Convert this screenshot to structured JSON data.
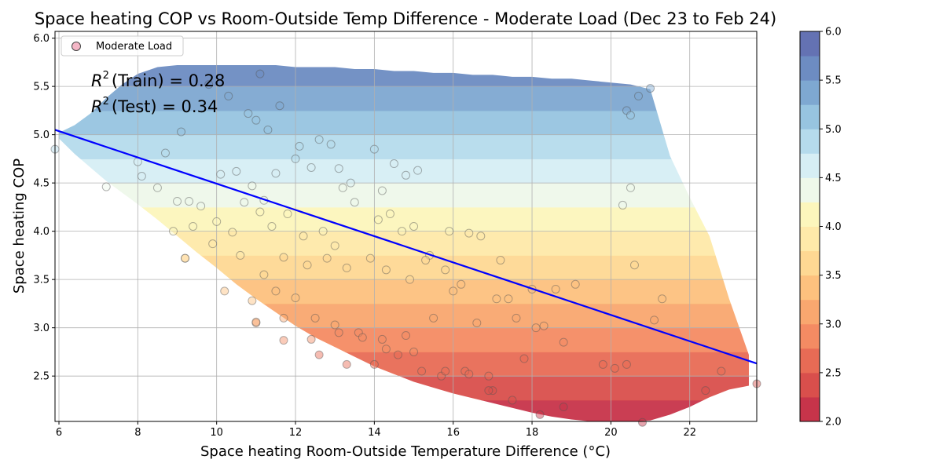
{
  "chart_data": {
    "type": "scatter",
    "title": "Space heating COP vs Room-Outside Temp Difference - Moderate Load (Dec 23 to Feb 24)",
    "xlabel": "Space heating Room-Outside Temperature Difference (°C)",
    "ylabel": "Space heating COP",
    "xlim": [
      5.9,
      23.7
    ],
    "ylim": [
      2.03,
      6.07
    ],
    "x_ticks": [
      6,
      8,
      10,
      12,
      14,
      16,
      18,
      20,
      22
    ],
    "y_ticks": [
      2.5,
      3.0,
      3.5,
      4.0,
      4.5,
      5.0,
      5.5,
      6.0
    ],
    "grid": true,
    "legend": {
      "placement": "top-left",
      "entries": [
        "Moderate Load"
      ]
    },
    "annotations": {
      "r2_train": "$R^2$ (Train) = 0.28",
      "r2_test": "$R^2$ (Test) = 0.34",
      "r2_train_label": "(Train) = 0.28",
      "r2_test_label": "(Test) = 0.34",
      "r2_symbol": "R",
      "r2_superscript": "2"
    },
    "regression_line": {
      "x": [
        5.9,
        23.7
      ],
      "y": [
        5.05,
        2.63
      ],
      "color": "#0000ff"
    },
    "colorbar": {
      "min": 2.0,
      "max": 6.0,
      "ticks": [
        "2.0",
        "2.5",
        "3.0",
        "3.5",
        "4.0",
        "4.5",
        "5.0",
        "5.5",
        "6.0"
      ],
      "colormap": "RdYlBu",
      "colors": [
        "#c7344a",
        "#d94f4c",
        "#e86b55",
        "#f48b63",
        "#f9a76f",
        "#fdc17e",
        "#fed893",
        "#fee9a9",
        "#fcf6bc",
        "#eef8ea",
        "#d6eef4",
        "#b5dbec",
        "#97c4e0",
        "#7ea8d1",
        "#6d8cc2",
        "#6472b3"
      ]
    },
    "contour_region": {
      "x": [
        6.0,
        6.4,
        6.8,
        7.2,
        7.6,
        8.0,
        8.5,
        9.0,
        9.5,
        10.0,
        10.5,
        11.0,
        11.5,
        12.0,
        12.5,
        13.0,
        13.5,
        14.0,
        14.5,
        15.0,
        15.5,
        16.0,
        16.5,
        17.0,
        17.5,
        18.0,
        18.5,
        19.0,
        19.5,
        20.0,
        20.5,
        21.0,
        21.5,
        22.0,
        22.5,
        23.0,
        23.5
      ],
      "y_top": [
        5.02,
        5.1,
        5.22,
        5.38,
        5.52,
        5.63,
        5.7,
        5.72,
        5.72,
        5.72,
        5.72,
        5.72,
        5.72,
        5.7,
        5.7,
        5.7,
        5.68,
        5.68,
        5.66,
        5.66,
        5.64,
        5.64,
        5.62,
        5.62,
        5.6,
        5.6,
        5.58,
        5.58,
        5.56,
        5.54,
        5.52,
        5.47,
        4.78,
        4.35,
        3.95,
        3.3,
        2.72
      ],
      "y_bottom": [
        4.96,
        4.8,
        4.66,
        4.52,
        4.4,
        4.28,
        4.12,
        3.95,
        3.78,
        3.62,
        3.45,
        3.3,
        3.16,
        3.02,
        2.9,
        2.8,
        2.7,
        2.6,
        2.52,
        2.44,
        2.38,
        2.32,
        2.27,
        2.22,
        2.17,
        2.12,
        2.08,
        2.05,
        2.03,
        2.03,
        2.03,
        2.04,
        2.1,
        2.18,
        2.28,
        2.36,
        2.4
      ]
    },
    "series": [
      {
        "name": "Moderate Load",
        "x": [
          5.9,
          7.2,
          8.1,
          8.5,
          9.0,
          9.3,
          9.6,
          10.1,
          10.5,
          10.9,
          11.2,
          11.5,
          12.0,
          12.4,
          12.9,
          13.2,
          8.0,
          8.7,
          9.1,
          9.8,
          10.3,
          10.8,
          11.0,
          11.3,
          11.6,
          12.1,
          12.6,
          13.1,
          13.4,
          14.0,
          14.2,
          14.5,
          14.8,
          15.1,
          8.9,
          9.4,
          10.0,
          10.4,
          10.7,
          11.1,
          11.4,
          11.8,
          12.2,
          12.7,
          13.0,
          13.5,
          14.1,
          14.4,
          14.7,
          15.0,
          15.4,
          15.9,
          16.4,
          9.2,
          9.9,
          10.6,
          11.2,
          11.7,
          12.3,
          12.8,
          13.3,
          13.9,
          14.3,
          14.9,
          15.3,
          15.8,
          16.2,
          16.7,
          17.2,
          10.2,
          10.9,
          11.5,
          12.0,
          12.5,
          13.0,
          13.6,
          14.2,
          14.8,
          15.5,
          16.0,
          16.6,
          17.1,
          17.6,
          18.1,
          11.0,
          11.7,
          12.4,
          13.1,
          13.7,
          14.3,
          15.0,
          15.7,
          16.3,
          16.9,
          17.4,
          18.0,
          18.6,
          19.1,
          12.6,
          13.3,
          14.0,
          14.6,
          15.2,
          15.8,
          16.4,
          17.0,
          17.5,
          18.2,
          18.8,
          20.4,
          20.5,
          20.7,
          21.0,
          20.3,
          20.5,
          20.6,
          21.1,
          21.3,
          22.8,
          23.7,
          22.4,
          19.8,
          20.1,
          20.4,
          17.8,
          18.3,
          18.8,
          20.8,
          16.9,
          9.2,
          11.0,
          11.7,
          11.1
        ],
        "y": [
          4.85,
          4.46,
          4.57,
          4.45,
          4.31,
          4.31,
          4.26,
          4.59,
          4.62,
          4.47,
          4.32,
          4.6,
          4.75,
          4.66,
          4.9,
          4.45,
          4.72,
          4.81,
          5.03,
          5.52,
          5.4,
          5.22,
          5.15,
          5.05,
          5.3,
          4.88,
          4.95,
          4.65,
          4.5,
          4.85,
          4.42,
          4.7,
          4.58,
          4.63,
          4.0,
          4.05,
          4.1,
          3.99,
          4.3,
          4.2,
          4.05,
          4.18,
          3.95,
          4.0,
          3.85,
          4.3,
          4.12,
          4.18,
          4.0,
          4.05,
          3.75,
          4.0,
          3.98,
          3.72,
          3.87,
          3.75,
          3.55,
          3.73,
          3.65,
          3.72,
          3.62,
          3.72,
          3.6,
          3.5,
          3.7,
          3.6,
          3.45,
          3.95,
          3.7,
          3.38,
          3.28,
          3.38,
          3.31,
          3.1,
          3.03,
          2.95,
          2.88,
          2.92,
          3.1,
          3.38,
          3.05,
          3.3,
          3.1,
          3.0,
          3.05,
          3.1,
          2.88,
          2.95,
          2.9,
          2.78,
          2.75,
          2.5,
          2.55,
          2.5,
          3.3,
          3.4,
          3.4,
          3.45,
          2.72,
          2.62,
          2.62,
          2.72,
          2.55,
          2.55,
          2.52,
          2.35,
          2.25,
          2.1,
          2.18,
          5.25,
          5.2,
          5.4,
          5.48,
          4.27,
          4.45,
          3.65,
          3.08,
          3.3,
          2.55,
          2.42,
          2.35,
          2.62,
          2.58,
          2.62,
          2.68,
          3.02,
          2.85,
          2.02,
          2.35,
          3.72,
          3.06,
          2.87,
          5.63
        ],
        "colorMode": "by_y"
      }
    ]
  }
}
